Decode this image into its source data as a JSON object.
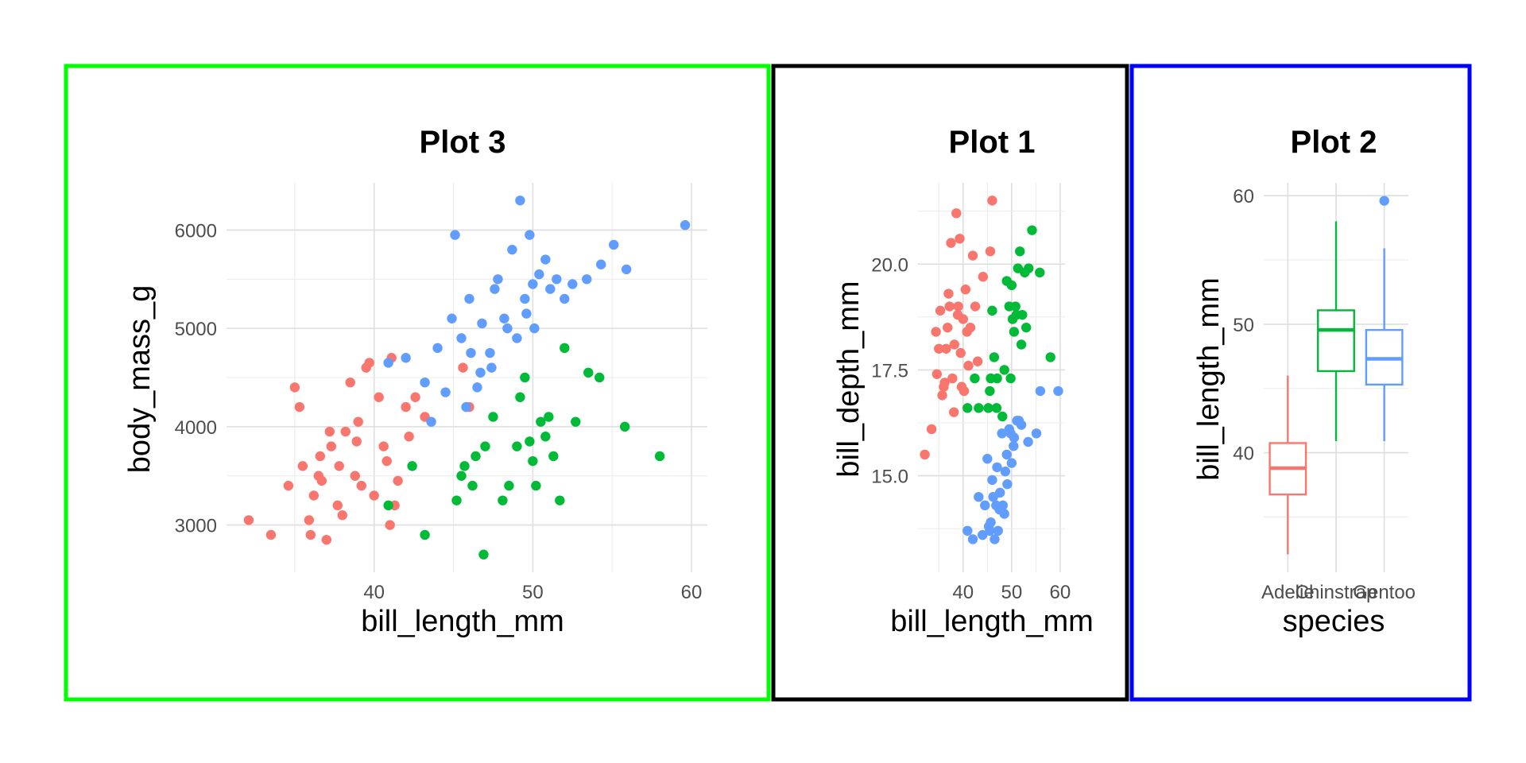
{
  "colors": {
    "Adelie": "#F8766D",
    "Chinstrap": "#00BA38",
    "Gentoo": "#619CFF"
  },
  "panel_borders": {
    "plot3": "#00FF00",
    "plot1": "#000000",
    "plot2": "#0000FF"
  },
  "chart_data": [
    {
      "id": "plot3",
      "type": "scatter",
      "title": "Plot 3",
      "xlabel": "bill_length_mm",
      "ylabel": "body_mass_g",
      "xlim": [
        32.1,
        59.6
      ],
      "ylim": [
        2700,
        6300
      ],
      "xticks": [
        40,
        50,
        60
      ],
      "yticks": [
        3000,
        4000,
        5000,
        6000
      ],
      "grid": true,
      "legend": "none",
      "series": [
        {
          "name": "Adelie",
          "points": [
            [
              32.1,
              3050
            ],
            [
              33.5,
              2900
            ],
            [
              34.6,
              3400
            ],
            [
              35.0,
              4400
            ],
            [
              35.3,
              4200
            ],
            [
              35.5,
              3600
            ],
            [
              36.0,
              2900
            ],
            [
              36.2,
              3300
            ],
            [
              36.5,
              3500
            ],
            [
              37.0,
              2850
            ],
            [
              37.3,
              3800
            ],
            [
              37.8,
              3600
            ],
            [
              38.0,
              3100
            ],
            [
              38.5,
              4450
            ],
            [
              38.8,
              3500
            ],
            [
              39.0,
              4050
            ],
            [
              39.5,
              4600
            ],
            [
              39.7,
              4650
            ],
            [
              40.0,
              3300
            ],
            [
              40.3,
              4300
            ],
            [
              40.6,
              3800
            ],
            [
              41.0,
              3000
            ],
            [
              41.1,
              4700
            ],
            [
              41.5,
              3450
            ],
            [
              42.0,
              4200
            ],
            [
              42.2,
              3900
            ],
            [
              42.6,
              4300
            ],
            [
              43.2,
              4100
            ],
            [
              45.6,
              4600
            ],
            [
              46.0,
              4200
            ],
            [
              36.6,
              3700
            ],
            [
              37.7,
              3200
            ],
            [
              38.2,
              3950
            ],
            [
              39.2,
              3400
            ],
            [
              40.8,
              3650
            ],
            [
              41.3,
              3200
            ],
            [
              38.9,
              3850
            ],
            [
              36.7,
              3450
            ],
            [
              35.9,
              3050
            ],
            [
              37.2,
              3950
            ]
          ]
        },
        {
          "name": "Chinstrap",
          "points": [
            [
              40.9,
              3200
            ],
            [
              42.4,
              3600
            ],
            [
              43.2,
              2900
            ],
            [
              45.2,
              3250
            ],
            [
              45.7,
              3600
            ],
            [
              46.4,
              3700
            ],
            [
              46.9,
              2700
            ],
            [
              47.0,
              3800
            ],
            [
              48.5,
              3400
            ],
            [
              49.0,
              3800
            ],
            [
              49.5,
              4500
            ],
            [
              50.0,
              3650
            ],
            [
              50.5,
              4050
            ],
            [
              50.8,
              3900
            ],
            [
              51.3,
              3700
            ],
            [
              52.0,
              4800
            ],
            [
              52.7,
              4050
            ],
            [
              53.5,
              4550
            ],
            [
              54.2,
              4500
            ],
            [
              55.8,
              4000
            ],
            [
              58.0,
              3700
            ],
            [
              46.2,
              3400
            ],
            [
              47.5,
              4100
            ],
            [
              49.8,
              3850
            ],
            [
              50.2,
              3400
            ],
            [
              51.0,
              4100
            ],
            [
              45.5,
              3500
            ],
            [
              48.1,
              3250
            ],
            [
              49.2,
              4300
            ],
            [
              51.7,
              3250
            ]
          ]
        },
        {
          "name": "Gentoo",
          "points": [
            [
              40.9,
              4650
            ],
            [
              42.0,
              4700
            ],
            [
              43.2,
              4450
            ],
            [
              44.0,
              4800
            ],
            [
              44.5,
              4350
            ],
            [
              45.1,
              5950
            ],
            [
              45.5,
              4900
            ],
            [
              46.0,
              5300
            ],
            [
              46.5,
              4400
            ],
            [
              46.8,
              5050
            ],
            [
              47.3,
              4750
            ],
            [
              47.8,
              5500
            ],
            [
              48.2,
              5100
            ],
            [
              48.7,
              5800
            ],
            [
              49.0,
              4900
            ],
            [
              49.2,
              6300
            ],
            [
              49.5,
              5300
            ],
            [
              49.8,
              5950
            ],
            [
              50.0,
              5450
            ],
            [
              50.4,
              5550
            ],
            [
              50.8,
              5700
            ],
            [
              51.1,
              5400
            ],
            [
              51.5,
              5500
            ],
            [
              52.0,
              5300
            ],
            [
              52.5,
              5450
            ],
            [
              53.4,
              5500
            ],
            [
              54.3,
              5650
            ],
            [
              55.1,
              5850
            ],
            [
              55.9,
              5600
            ],
            [
              59.6,
              6050
            ],
            [
              46.1,
              4750
            ],
            [
              47.4,
              4600
            ],
            [
              48.4,
              5000
            ],
            [
              45.8,
              4200
            ],
            [
              44.9,
              5100
            ],
            [
              47.6,
              5400
            ],
            [
              49.6,
              5150
            ],
            [
              50.1,
              5000
            ],
            [
              43.6,
              4050
            ],
            [
              46.7,
              4550
            ]
          ]
        }
      ]
    },
    {
      "id": "plot1",
      "type": "scatter",
      "title": "Plot 1",
      "xlabel": "bill_length_mm",
      "ylabel": "bill_depth_mm",
      "xlim": [
        32.1,
        59.6
      ],
      "ylim": [
        13.1,
        21.5
      ],
      "xticks": [
        40,
        50,
        60
      ],
      "yticks": [
        15.0,
        17.5,
        20.0
      ],
      "grid": true,
      "legend": "none",
      "series": [
        {
          "name": "Adelie",
          "points": [
            [
              32.1,
              15.5
            ],
            [
              33.5,
              16.1
            ],
            [
              34.6,
              17.4
            ],
            [
              35.0,
              18.0
            ],
            [
              35.3,
              18.9
            ],
            [
              36.0,
              17.1
            ],
            [
              36.5,
              18.0
            ],
            [
              37.0,
              19.3
            ],
            [
              37.5,
              20.5
            ],
            [
              37.8,
              17.3
            ],
            [
              38.2,
              18.1
            ],
            [
              38.6,
              21.2
            ],
            [
              39.0,
              19.0
            ],
            [
              39.5,
              17.9
            ],
            [
              40.0,
              18.7
            ],
            [
              40.5,
              19.4
            ],
            [
              41.1,
              17.6
            ],
            [
              41.5,
              18.5
            ],
            [
              42.0,
              20.2
            ],
            [
              42.5,
              19.0
            ],
            [
              43.0,
              17.7
            ],
            [
              44.1,
              19.7
            ],
            [
              45.6,
              20.3
            ],
            [
              46.0,
              21.5
            ],
            [
              36.8,
              18.5
            ],
            [
              38.9,
              18.8
            ],
            [
              39.7,
              17.1
            ],
            [
              40.8,
              18.4
            ],
            [
              37.2,
              19.0
            ],
            [
              35.7,
              16.9
            ],
            [
              36.2,
              17.2
            ],
            [
              38.1,
              16.5
            ],
            [
              39.3,
              20.6
            ],
            [
              40.2,
              17.0
            ],
            [
              34.4,
              18.4
            ]
          ]
        },
        {
          "name": "Chinstrap",
          "points": [
            [
              40.9,
              16.6
            ],
            [
              42.4,
              17.3
            ],
            [
              43.2,
              16.6
            ],
            [
              45.2,
              16.6
            ],
            [
              45.7,
              17.3
            ],
            [
              46.0,
              18.9
            ],
            [
              46.4,
              17.8
            ],
            [
              47.0,
              17.3
            ],
            [
              48.5,
              17.5
            ],
            [
              49.0,
              19.6
            ],
            [
              49.5,
              19.0
            ],
            [
              50.0,
              19.5
            ],
            [
              50.5,
              18.4
            ],
            [
              51.0,
              18.8
            ],
            [
              51.3,
              19.9
            ],
            [
              52.0,
              18.1
            ],
            [
              52.7,
              19.8
            ],
            [
              53.5,
              19.9
            ],
            [
              54.2,
              20.8
            ],
            [
              55.8,
              19.8
            ],
            [
              58.0,
              17.8
            ],
            [
              50.2,
              18.7
            ],
            [
              51.7,
              20.3
            ],
            [
              46.9,
              16.6
            ],
            [
              48.1,
              16.4
            ],
            [
              49.8,
              17.3
            ],
            [
              50.8,
              19.0
            ],
            [
              45.5,
              17.0
            ],
            [
              52.2,
              18.8
            ],
            [
              53.0,
              18.5
            ]
          ]
        },
        {
          "name": "Gentoo",
          "points": [
            [
              40.9,
              13.7
            ],
            [
              42.0,
              13.5
            ],
            [
              43.2,
              14.5
            ],
            [
              44.0,
              13.6
            ],
            [
              45.0,
              15.4
            ],
            [
              45.5,
              13.7
            ],
            [
              46.0,
              14.9
            ],
            [
              46.5,
              13.5
            ],
            [
              47.0,
              15.2
            ],
            [
              47.5,
              14.2
            ],
            [
              48.0,
              16.0
            ],
            [
              48.5,
              14.1
            ],
            [
              49.0,
              15.5
            ],
            [
              49.5,
              16.1
            ],
            [
              50.0,
              15.3
            ],
            [
              50.5,
              15.9
            ],
            [
              51.1,
              16.3
            ],
            [
              52.0,
              16.2
            ],
            [
              53.4,
              15.8
            ],
            [
              55.1,
              16.0
            ],
            [
              55.9,
              17.0
            ],
            [
              59.6,
              17.0
            ],
            [
              46.8,
              14.3
            ],
            [
              45.3,
              13.8
            ],
            [
              49.1,
              14.8
            ],
            [
              50.4,
              15.7
            ],
            [
              44.5,
              14.3
            ],
            [
              47.2,
              13.7
            ],
            [
              48.7,
              15.1
            ],
            [
              46.2,
              14.5
            ],
            [
              51.5,
              16.3
            ],
            [
              48.2,
              14.3
            ],
            [
              45.7,
              13.9
            ],
            [
              49.8,
              16.0
            ],
            [
              47.6,
              14.6
            ]
          ]
        }
      ]
    },
    {
      "id": "plot2",
      "type": "box",
      "title": "Plot 2",
      "xlabel": "species",
      "ylabel": "bill_length_mm",
      "categories": [
        "Adelie",
        "Chinstrap",
        "Gentoo"
      ],
      "ylim": [
        32.1,
        59.6
      ],
      "yticks": [
        40,
        50,
        60
      ],
      "grid": true,
      "legend": "none",
      "boxes": [
        {
          "name": "Adelie",
          "min": 32.1,
          "q1": 36.75,
          "median": 38.8,
          "q3": 40.75,
          "max": 46.0,
          "outliers": []
        },
        {
          "name": "Chinstrap",
          "min": 40.9,
          "q1": 46.35,
          "median": 49.55,
          "q3": 51.08,
          "max": 58.0,
          "outliers": []
        },
        {
          "name": "Gentoo",
          "min": 40.9,
          "q1": 45.3,
          "median": 47.3,
          "q3": 49.55,
          "max": 55.9,
          "outliers": [
            59.6
          ]
        }
      ]
    }
  ]
}
